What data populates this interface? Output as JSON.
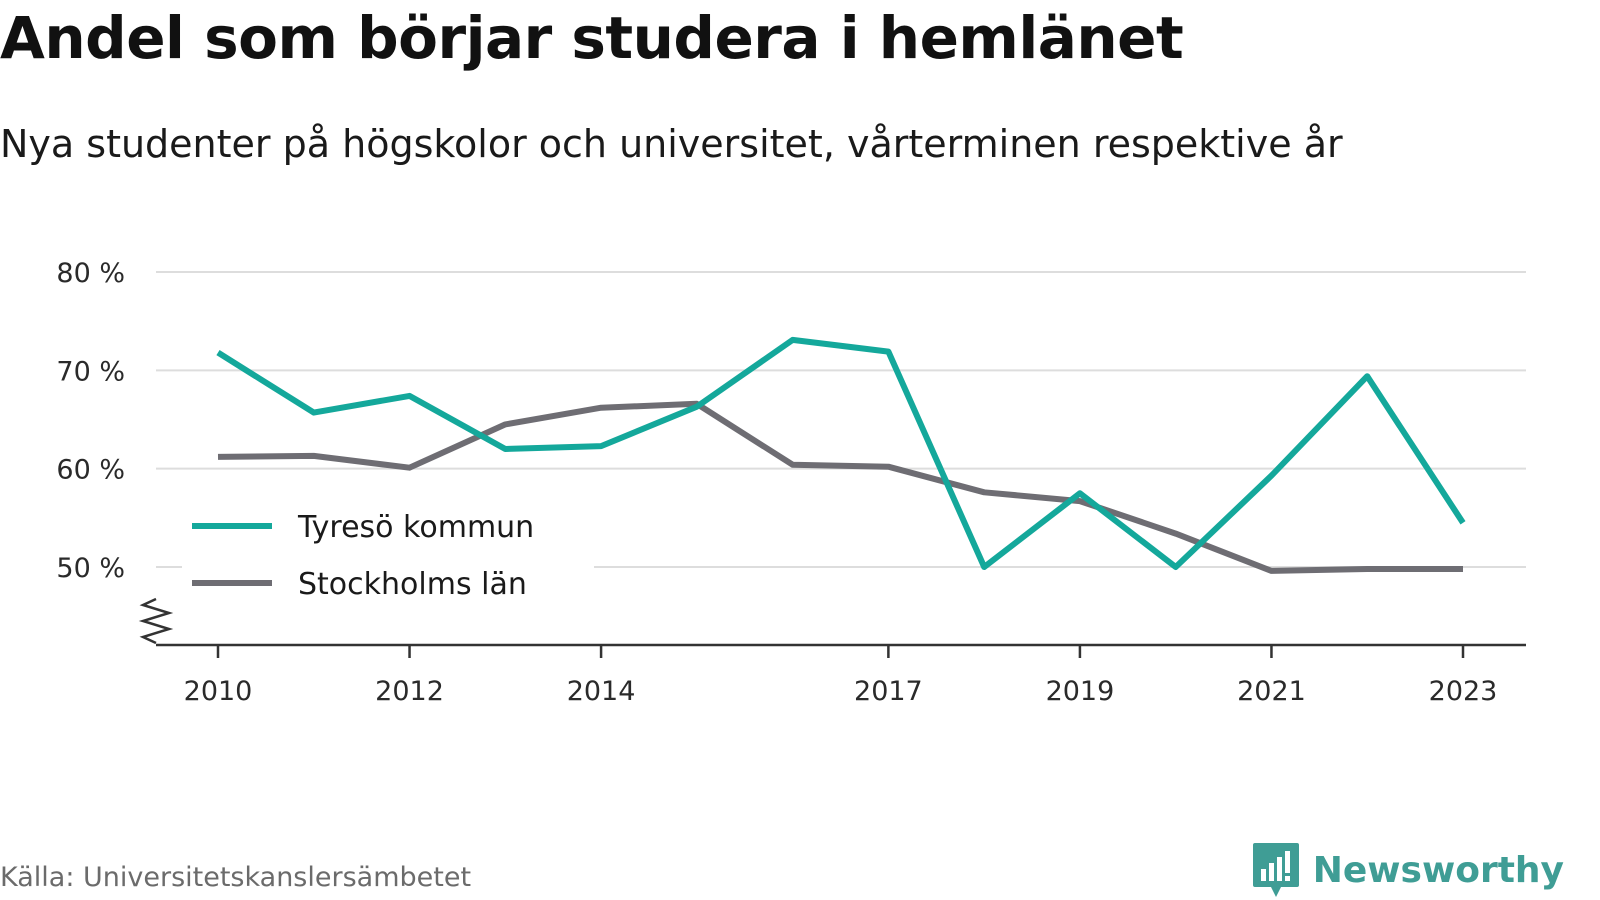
{
  "header": {
    "title": "Andel som börjar studera i hemlänet",
    "subtitle": "Nya studenter på högskolor och universitet, vårterminen respektive år"
  },
  "footer": {
    "source": "Källa: Universitetskanslersämbetet",
    "brand": "Newsworthy"
  },
  "colors": {
    "tyreso": "#14a89b",
    "stockholm": "#6e6d73",
    "grid": "#dddddd",
    "axis": "#333333",
    "brand": "#3f9d95"
  },
  "chart_data": {
    "type": "line",
    "x": [
      2010,
      2011,
      2012,
      2013,
      2014,
      2015,
      2016,
      2017,
      2018,
      2019,
      2020,
      2021,
      2022,
      2023
    ],
    "x_tick_labels": [
      "2010",
      "2012",
      "2014",
      "2017",
      "2019",
      "2021",
      "2023"
    ],
    "y_ticks": [
      50,
      60,
      70,
      80
    ],
    "y_tick_labels": [
      "50 %",
      "60 %",
      "70 %",
      "80 %"
    ],
    "ylim": [
      42,
      80
    ],
    "y_axis_broken": true,
    "grid": true,
    "legend_position": "bottom-left",
    "series": [
      {
        "name": "Tyresö kommun",
        "color_key": "tyreso",
        "values": [
          71.8,
          65.7,
          67.4,
          62.0,
          62.3,
          66.3,
          73.1,
          71.9,
          50.0,
          57.5,
          50.0,
          59.3,
          69.4,
          54.5
        ]
      },
      {
        "name": "Stockholms län",
        "color_key": "stockholm",
        "values": [
          61.2,
          61.3,
          60.1,
          64.5,
          66.2,
          66.6,
          60.4,
          60.2,
          57.6,
          56.7,
          53.4,
          49.6,
          49.8,
          49.8
        ]
      }
    ]
  }
}
